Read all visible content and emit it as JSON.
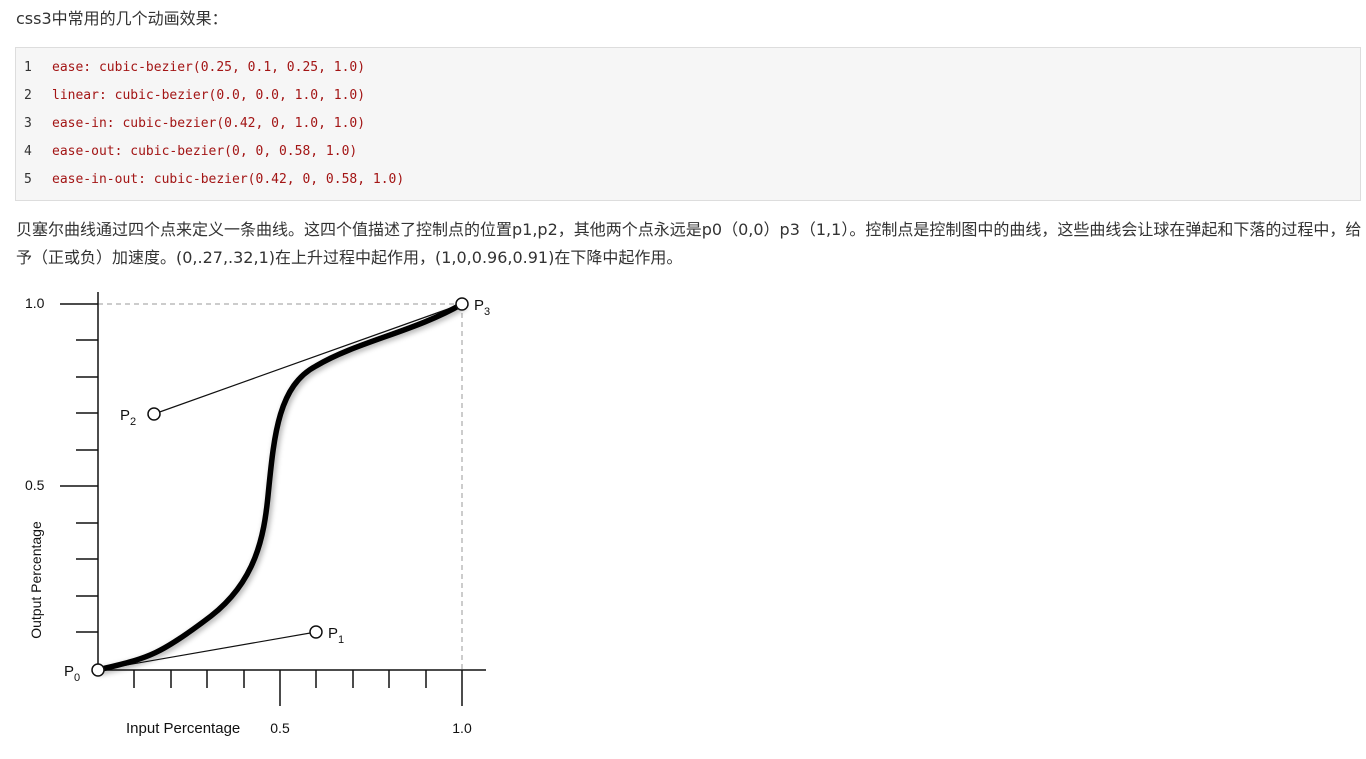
{
  "heading": "css3中常用的几个动画效果：",
  "code_lines": [
    {
      "num": "1",
      "text": "ease: cubic-bezier(0.25, 0.1, 0.25, 1.0)"
    },
    {
      "num": "2",
      "text": "linear: cubic-bezier(0.0, 0.0, 1.0, 1.0)"
    },
    {
      "num": "3",
      "text": "ease-in: cubic-bezier(0.42, 0, 1.0, 1.0)"
    },
    {
      "num": "4",
      "text": "ease-out: cubic-bezier(0, 0, 0.58, 1.0)"
    },
    {
      "num": "5",
      "text": "ease-in-out: cubic-bezier(0.42, 0, 0.58, 1.0)"
    }
  ],
  "paragraph": "贝塞尔曲线通过四个点来定义一条曲线。这四个值描述了控制点的位置p1,p2，其他两个点永远是p0（0,0）p3（1,1）。控制点是控制图中的曲线，这些曲线会让球在弹起和下落的过程中，给予（正或负）加速度。(0,.27,.32,1)在上升过程中起作用，(1,0,0.96,0.91)在下降中起作用。",
  "figure": {
    "y_tick_top": "1.0",
    "y_tick_mid": "0.5",
    "y_axis_label": "Output Percentage",
    "x_axis_label": "Input Percentage",
    "x_tick_mid": "0.5",
    "x_tick_right": "1.0",
    "points": {
      "p0": {
        "letter": "P",
        "sub": "0",
        "x": 0,
        "y": 0
      },
      "p1": {
        "letter": "P",
        "sub": "1",
        "x": 0.6,
        "y": 0.1
      },
      "p2": {
        "letter": "P",
        "sub": "2",
        "x": 0.15,
        "y": 0.7
      },
      "p3": {
        "letter": "P",
        "sub": "3",
        "x": 1.0,
        "y": 1.0
      }
    }
  }
}
